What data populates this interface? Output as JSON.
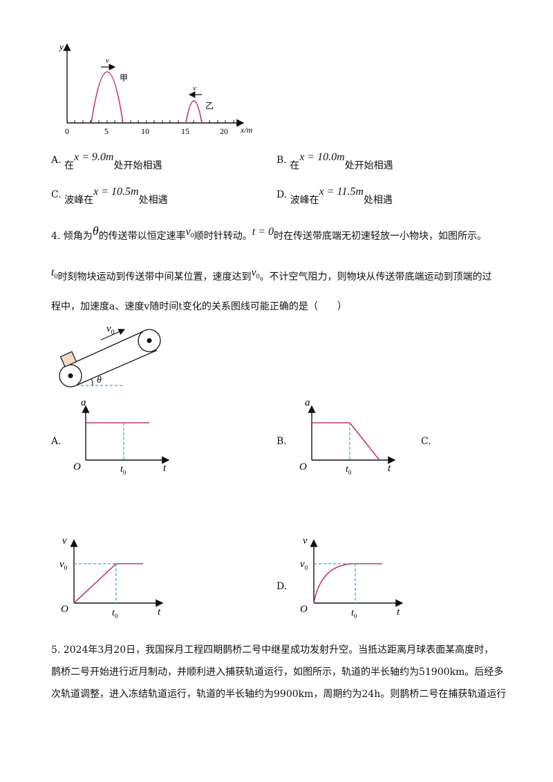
{
  "wave_figure": {
    "y_label": "y",
    "x_label": "x/m",
    "ticks": [
      "0",
      "5",
      "10",
      "15",
      "20"
    ],
    "wave_a": {
      "label": "甲",
      "velocity": "v"
    },
    "wave_b": {
      "label": "乙",
      "velocity": "v"
    }
  },
  "q3_options": [
    {
      "letter": "A.",
      "prefix": "在",
      "expr": "x = 9.0m",
      "suffix": "处开始相遇"
    },
    {
      "letter": "B.",
      "prefix": "在",
      "expr": "x = 10.0m",
      "suffix": "处开始相遇"
    },
    {
      "letter": "C.",
      "prefix": "波峰在",
      "expr": "x = 10.5m",
      "suffix": "处相遇"
    },
    {
      "letter": "D.",
      "prefix": "波峰在",
      "expr": "x = 11.5m",
      "suffix": "处相遇"
    }
  ],
  "q4": {
    "line1_a": "4. 倾角为",
    "theta": "θ",
    "line1_b": "的传送带以恒定速率",
    "v0_v": "v",
    "v0_sub": "0",
    "line1_c": "顺时针转动。",
    "t_eq0": "t = 0",
    "line1_d": "时在传送带底端无初速轻放一小物块，如图所示。",
    "t0_t": "t",
    "t0_sub": "0",
    "line2_a": "时刻物块运动到传送带中间某位置，速度达到",
    "line2_b": "。不计空气阻力，则物块从传送带底端运动到顶端的过",
    "line3": "程中，加速度a、速度v随时间t变化的关系图线可能正确的是（　　）"
  },
  "belt_figure": {
    "v0": "v",
    "v0_sub": "0",
    "angle": "θ"
  },
  "graphs": {
    "A": {
      "letter": "A.",
      "y": "a",
      "x": "t",
      "origin": "O",
      "t0": "t",
      "t0_sub": "0"
    },
    "B": {
      "letter": "B.",
      "y": "a",
      "x": "t",
      "origin": "O",
      "t0": "t",
      "t0_sub": "0"
    },
    "C": {
      "letter": "C.",
      "y": "v",
      "x": "t",
      "origin": "O",
      "t0": "t",
      "t0_sub": "0",
      "v0": "v",
      "v0_sub": "0"
    },
    "D": {
      "letter": "D.",
      "y": "v",
      "x": "t",
      "origin": "O",
      "t0": "t",
      "t0_sub": "0",
      "v0": "v",
      "v0_sub": "0"
    }
  },
  "q5": {
    "line1": "5. 2024年3月20日，我国探月工程四期鹊桥二号中继星成功发射升空。当抵达距离月球表面某高度时，",
    "line2": "鹊桥二号开始进行近月制动，并顺利进入捕获轨道运行，如图所示，轨道的半长轴约为51900km。后经多",
    "line3": "次轨道调整，进入冻结轨道运行，轨道的半长轴约为9900km，周期约为24h。则鹊桥二号在捕获轨道运行"
  }
}
